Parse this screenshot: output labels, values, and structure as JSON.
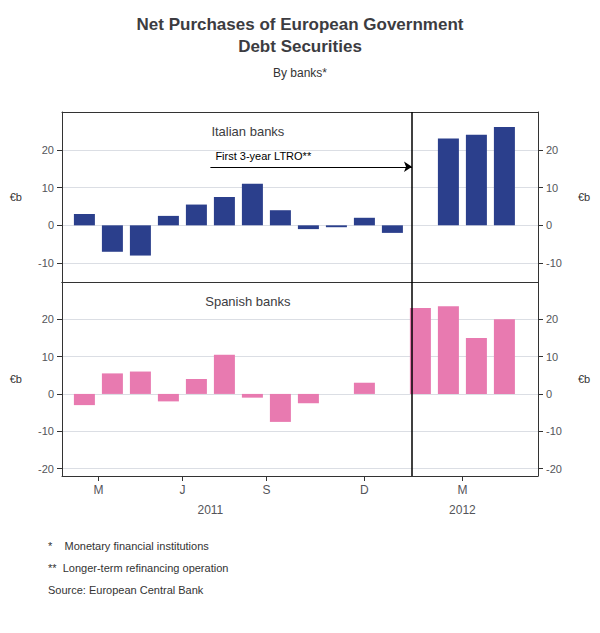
{
  "title": "Net Purchases of European Government\nDebt Securities",
  "subtitle": "By banks*",
  "annotations": [
    {
      "text": "*    Monetary financial institutions"
    },
    {
      "text": "**  Longer-term refinancing operation"
    },
    {
      "text": "Source: European Central Bank"
    }
  ],
  "chart_data": [
    {
      "type": "bar",
      "title": "Italian banks",
      "color": "#2b3f8c",
      "x": [
        1,
        2,
        3,
        4,
        5,
        6,
        7,
        8,
        9,
        10,
        11,
        12,
        14,
        15,
        16
      ],
      "values": [
        3.0,
        -7.0,
        -8.0,
        2.5,
        5.5,
        7.5,
        11.0,
        4.0,
        -1.0,
        -0.5,
        2.0,
        -2.0,
        23.0,
        24.0,
        26.0
      ],
      "xlim": [
        0.2,
        17.2
      ],
      "ylim": [
        -15,
        30
      ],
      "yticks": [
        -10,
        0,
        10,
        20
      ],
      "ylabel": "€b",
      "y2lim": [
        -15,
        30
      ],
      "y2ticks": [
        -10,
        0,
        10,
        20
      ],
      "y2label": "€b",
      "grid": true,
      "tick_labels": "y",
      "vlines": [
        12.7
      ],
      "annotations": [
        {
          "text": "First 3-year LTRO**",
          "x": 5.5,
          "y": 15.5,
          "arrow_to_x": 12.7
        }
      ]
    },
    {
      "type": "bar",
      "title": "Spanish banks",
      "color": "#e87ab0",
      "x": [
        1,
        2,
        3,
        4,
        5,
        6,
        7,
        8,
        9,
        11,
        13,
        14,
        15,
        16
      ],
      "values": [
        -3.0,
        5.5,
        6.0,
        -2.0,
        4.0,
        10.5,
        -1.0,
        -7.5,
        -2.5,
        3.0,
        23.0,
        23.5,
        15.0,
        20.0
      ],
      "xlim": [
        0.2,
        17.2
      ],
      "xticks": [
        {
          "value": 1.5,
          "label": "M"
        },
        {
          "value": 4.5,
          "label": "J"
        },
        {
          "value": 7.5,
          "label": "S"
        },
        {
          "value": 11.0,
          "label": "D"
        },
        {
          "value": 14.5,
          "label": "M"
        }
      ],
      "ylim": [
        -22,
        30
      ],
      "yticks": [
        -20,
        -10,
        0,
        10,
        20
      ],
      "ylabel": "€b",
      "y2lim": [
        -22,
        30
      ],
      "y2ticks": [
        -20,
        -10,
        0,
        10,
        20
      ],
      "y2label": "€b",
      "grid": true,
      "vlines": [
        12.7
      ],
      "annotations": [
        {
          "text": "2011",
          "x": 5.5
        },
        {
          "text": "2012",
          "x": 14.5
        }
      ]
    }
  ]
}
